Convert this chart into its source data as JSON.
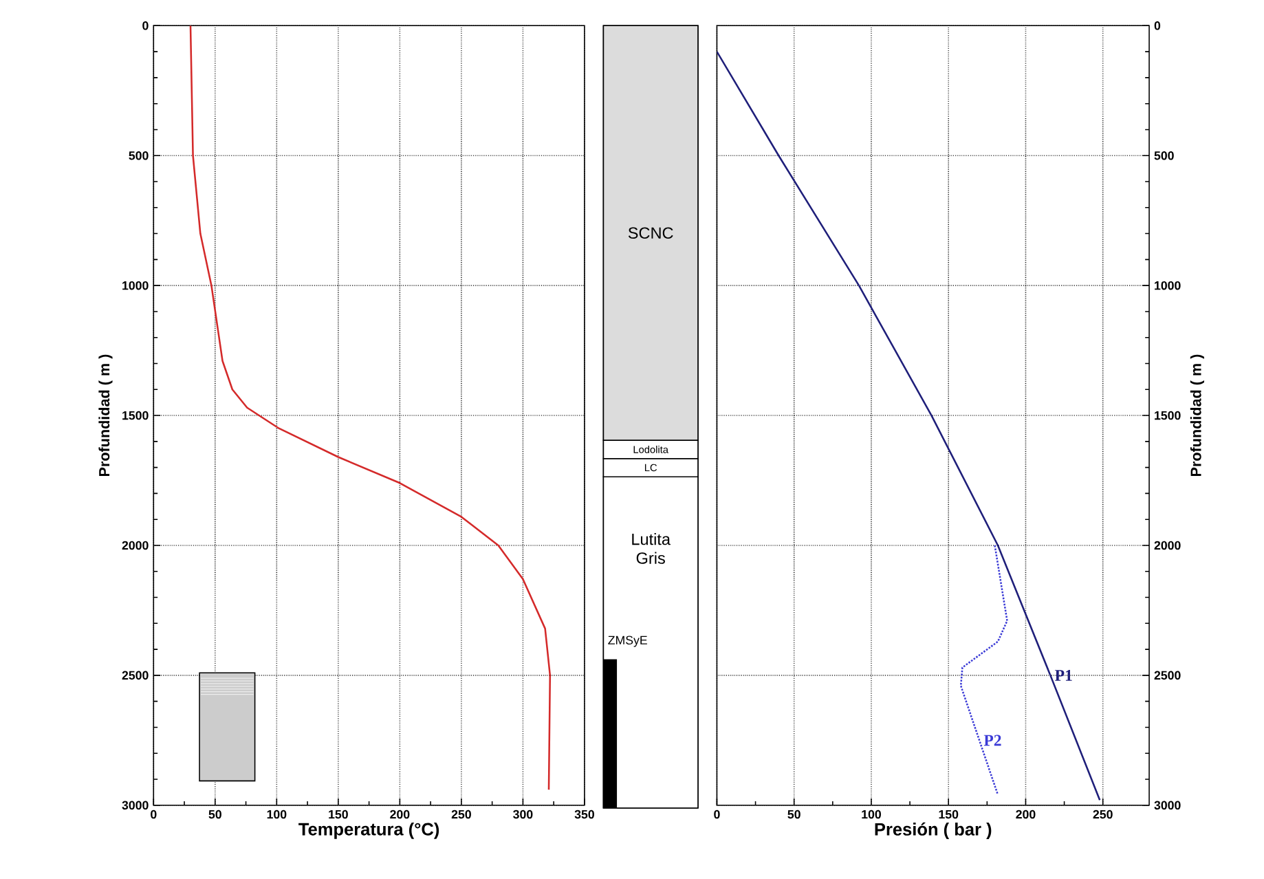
{
  "chart_data": [
    {
      "type": "line",
      "xlabel": "Temperatura (°C)",
      "ylabel": "Profundidad ( m )",
      "xlim": [
        0,
        350
      ],
      "xticks": [
        0,
        50,
        100,
        150,
        200,
        250,
        300,
        350
      ],
      "ylim": [
        3000,
        0
      ],
      "yticks": [
        0,
        500,
        1000,
        1500,
        2000,
        2500,
        3000
      ],
      "grid": true,
      "legend": false,
      "series": [
        {
          "color": "#d42a2a",
          "x": [
            30,
            32,
            38,
            47,
            56,
            64,
            76,
            102,
            150,
            200,
            250,
            280,
            300,
            318,
            322,
            321
          ],
          "values": [
            0,
            500,
            800,
            1000,
            1290,
            1400,
            1470,
            1550,
            1660,
            1760,
            1890,
            2000,
            2130,
            2320,
            2500,
            2940
          ]
        }
      ]
    },
    {
      "type": "bar",
      "stacked": true,
      "categories": [
        null
      ],
      "ylim": [
        3000,
        0
      ],
      "tick_labels": false,
      "series": [
        {
          "name": "SCNC",
          "color": "#dcdcdc",
          "values": [
            1590
          ]
        },
        {
          "name": "Lodolita",
          "color": "#ffffff",
          "values": [
            70
          ]
        },
        {
          "name": "LC",
          "color": "#ffffff",
          "values": [
            70
          ]
        },
        {
          "name": "Lutita Gris",
          "color": "#ffffff",
          "values": [
            1270
          ]
        }
      ],
      "bands": [
        {
          "axis": "y",
          "from": 2430,
          "to": 3000,
          "label": "ZMSyE",
          "color": "#000000"
        }
      ]
    },
    {
      "type": "line",
      "xlabel": "Presión ( bar )",
      "ylabel": "Profundidad ( m )",
      "xlim": [
        0,
        280
      ],
      "xticks": [
        0,
        50,
        100,
        150,
        200,
        250
      ],
      "ylim": [
        3000,
        0
      ],
      "yticks": [
        0,
        500,
        1000,
        1500,
        2000,
        2500,
        3000
      ],
      "grid": true,
      "legend": false,
      "series": [
        {
          "name": "P1",
          "color": "#1f1f7a",
          "line_style": "solid",
          "x": [
            0,
            40,
            92,
            139,
            182,
            216,
            248
          ],
          "values": [
            100,
            500,
            1000,
            1500,
            2000,
            2500,
            2980
          ]
        },
        {
          "name": "P2",
          "color": "#3b3bd6",
          "line_style": "dotted",
          "x": [
            180,
            188,
            182,
            159,
            158,
            170,
            182
          ],
          "values": [
            2000,
            2290,
            2370,
            2470,
            2540,
            2750,
            2960
          ]
        }
      ]
    }
  ]
}
